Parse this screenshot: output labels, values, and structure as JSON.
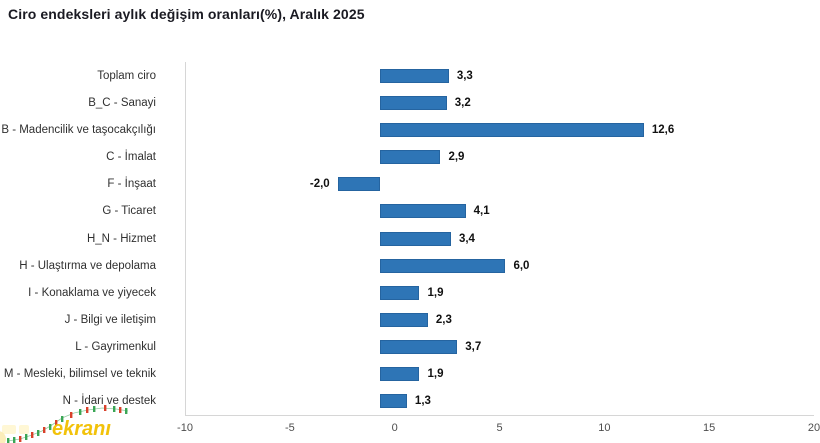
{
  "title": "Ciro endeksleri aylık değişim oranları(%), Aralık 2025",
  "chart_data": {
    "type": "bar",
    "orientation": "horizontal",
    "title": "Ciro endeksleri aylık değişim oranları(%), Aralık 2025",
    "categories": [
      "Toplam ciro",
      "B_C - Sanayi",
      "B - Madencilik ve taşocakçılığı",
      "C - İmalat",
      "F - İnşaat",
      "G - Ticaret",
      "H_N - Hizmet",
      "H - Ulaştırma ve depolama",
      "I - Konaklama ve yiyecek",
      "J - Bilgi ve iletişim",
      "L - Gayrimenkul",
      "M - Mesleki, bilimsel ve teknik",
      "N - İdari ve destek"
    ],
    "values": [
      3.3,
      3.2,
      12.6,
      2.9,
      -2.0,
      4.1,
      3.4,
      6.0,
      1.9,
      2.3,
      3.7,
      1.9,
      1.3
    ],
    "value_labels": [
      "3,3",
      "3,2",
      "12,6",
      "2,9",
      "-2,0",
      "4,1",
      "3,4",
      "6,0",
      "1,9",
      "2,3",
      "3,7",
      "1,9",
      "1,3"
    ],
    "xlabel": "",
    "ylabel": "",
    "xlim": [
      -10,
      20
    ],
    "x_ticks": [
      -10,
      -5,
      0,
      5,
      10,
      15,
      20
    ],
    "x_tick_labels": [
      "-10",
      "-5",
      "0",
      "5",
      "10",
      "15",
      "20"
    ],
    "bar_color": "#2e75b6",
    "grid": false,
    "legend": null
  },
  "logo": {
    "text": "ekranı",
    "text_color": "#f2c20a",
    "up_color": "#3aa655",
    "down_color": "#d9402a",
    "faded_color": "#ffe98a"
  }
}
